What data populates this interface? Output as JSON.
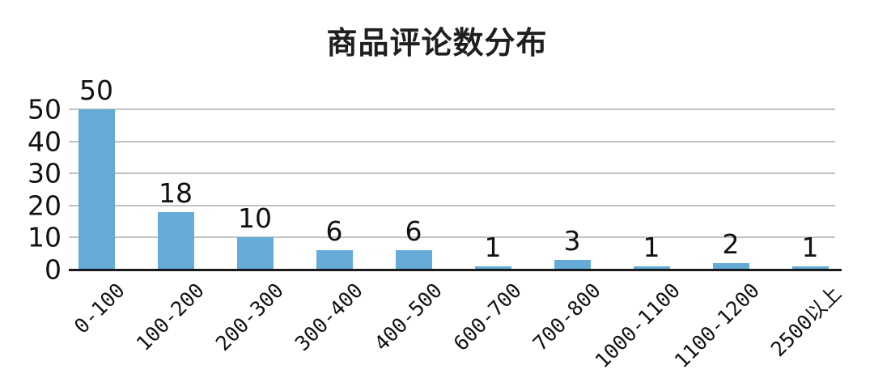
{
  "figure": {
    "title": "商品评论数分布"
  },
  "chart_data": {
    "type": "bar",
    "title": "商品评论数分布",
    "categories": [
      "0-100",
      "100-200",
      "200-300",
      "300-400",
      "400-500",
      "600-700",
      "700-800",
      "1000-1100",
      "1100-1200",
      "2500以上"
    ],
    "values": [
      50,
      18,
      10,
      6,
      6,
      1,
      3,
      1,
      2,
      1
    ],
    "xlabel": "",
    "ylabel": "",
    "yticks": [
      0,
      10,
      20,
      30,
      40,
      50
    ],
    "ylim": [
      0,
      50
    ],
    "grid": true,
    "legend": "none",
    "x_tick_rotation_deg": 45,
    "bar_color": "#64ABD8",
    "grid_color": "#c2c2c2",
    "axis_color": "#1a1a1a",
    "text_color": "#111111"
  }
}
